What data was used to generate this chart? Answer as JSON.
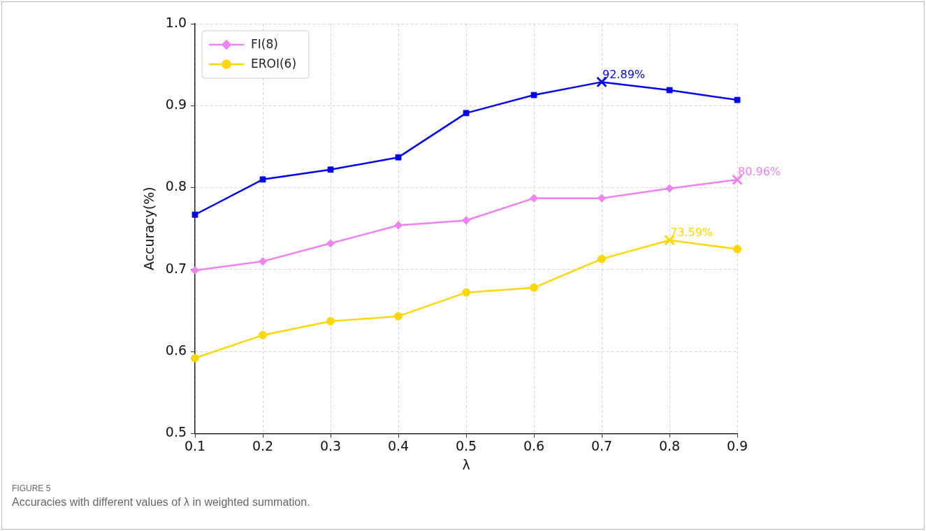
{
  "chart_data": {
    "type": "line",
    "xlabel": "λ",
    "ylabel": "Accuracy(%)",
    "x": [
      0.1,
      0.2,
      0.3,
      0.4,
      0.5,
      0.6,
      0.7,
      0.8,
      0.9
    ],
    "series": [
      {
        "color": "#0000ee",
        "marker": "square",
        "values": [
          0.767,
          0.81,
          0.822,
          0.837,
          0.891,
          0.913,
          0.9289,
          0.919,
          0.907
        ]
      },
      {
        "name": "FI(8)",
        "color": "#ee82ee",
        "marker": "diamond",
        "values": [
          0.699,
          0.71,
          0.732,
          0.754,
          0.76,
          0.787,
          0.787,
          0.799,
          0.8096
        ]
      },
      {
        "name": "EROI(6)",
        "color": "#ffd700",
        "marker": "circle",
        "values": [
          0.592,
          0.62,
          0.637,
          0.643,
          0.672,
          0.678,
          0.713,
          0.7359,
          0.725
        ]
      }
    ],
    "xlim": [
      0.1,
      0.9
    ],
    "xticks": [
      0.1,
      0.2,
      0.3,
      0.4,
      0.5,
      0.6,
      0.7,
      0.8,
      0.9
    ],
    "ylim": [
      0.5,
      1.0
    ],
    "yticks": [
      0.5,
      0.6,
      0.7,
      0.8,
      0.9,
      {
        "value": 1.0,
        "label": "1.0"
      }
    ],
    "grid": true,
    "legend": "top left",
    "line_style": "solid",
    "annotations": [
      {
        "text": "92.89%",
        "x": 0.7,
        "y": 0.9289
      },
      {
        "text": "80.96%",
        "x": 0.9,
        "y": 0.8096
      },
      {
        "text": "73.59%",
        "x": 0.8,
        "y": 0.7359
      },
      "FIGURE 5",
      "Accuracies with different values of λ in weighted summation."
    ]
  }
}
